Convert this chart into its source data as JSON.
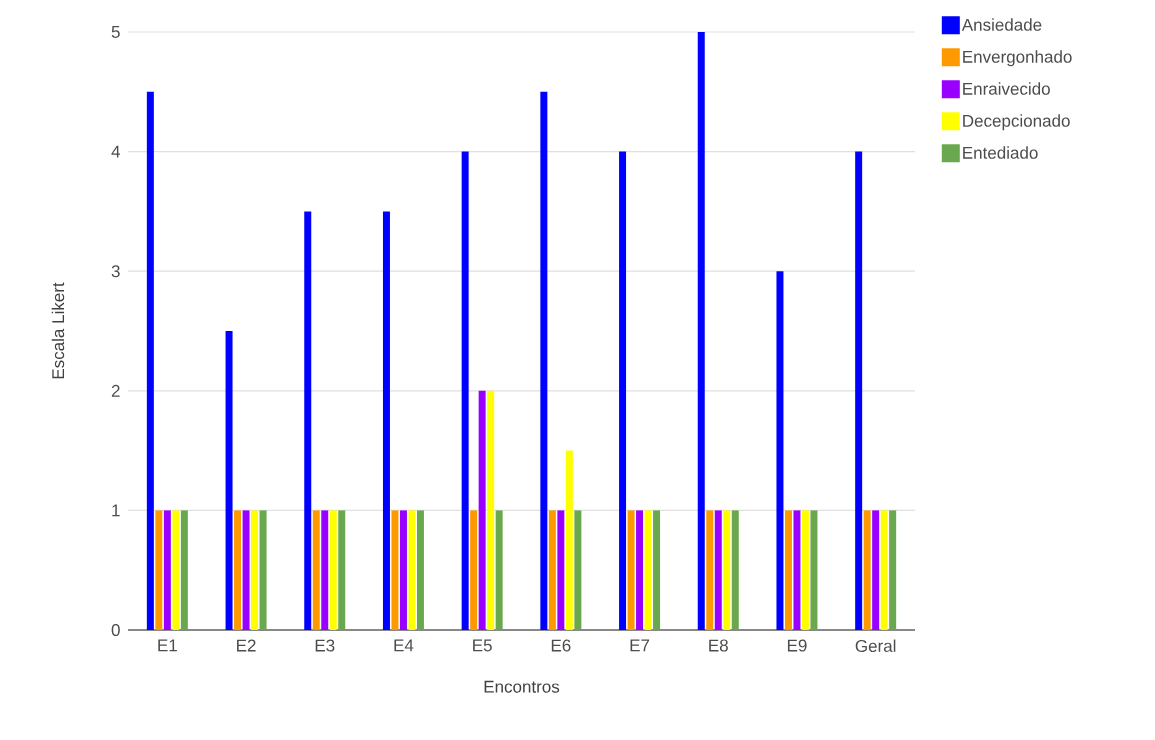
{
  "chart_data": {
    "type": "bar",
    "xlabel": "Encontros",
    "ylabel": "Escala Likert",
    "categories": [
      "E1",
      "E2",
      "E3",
      "E4",
      "E5",
      "E6",
      "E7",
      "E8",
      "E9",
      "Geral"
    ],
    "series": [
      {
        "name": "Ansiedade",
        "color": "#0000ff",
        "values": [
          4.5,
          2.5,
          3.5,
          3.5,
          4,
          4.5,
          4,
          5,
          3,
          4
        ]
      },
      {
        "name": "Envergonhado",
        "color": "#ff9900",
        "values": [
          1,
          1,
          1,
          1,
          1,
          1,
          1,
          1,
          1,
          1
        ]
      },
      {
        "name": "Enraivecido",
        "color": "#9900ff",
        "values": [
          1,
          1,
          1,
          1,
          2,
          1,
          1,
          1,
          1,
          1
        ]
      },
      {
        "name": "Decepcionado",
        "color": "#ffff00",
        "values": [
          1,
          1,
          1,
          1,
          2,
          1.5,
          1,
          1,
          1,
          1
        ]
      },
      {
        "name": "Entediado",
        "color": "#6aa84f",
        "values": [
          1,
          1,
          1,
          1,
          1,
          1,
          1,
          1,
          1,
          1
        ]
      }
    ],
    "ylim": [
      0,
      5
    ],
    "yticks": [
      0,
      1,
      2,
      3,
      4,
      5
    ],
    "grid": "y",
    "legend": "top right"
  }
}
